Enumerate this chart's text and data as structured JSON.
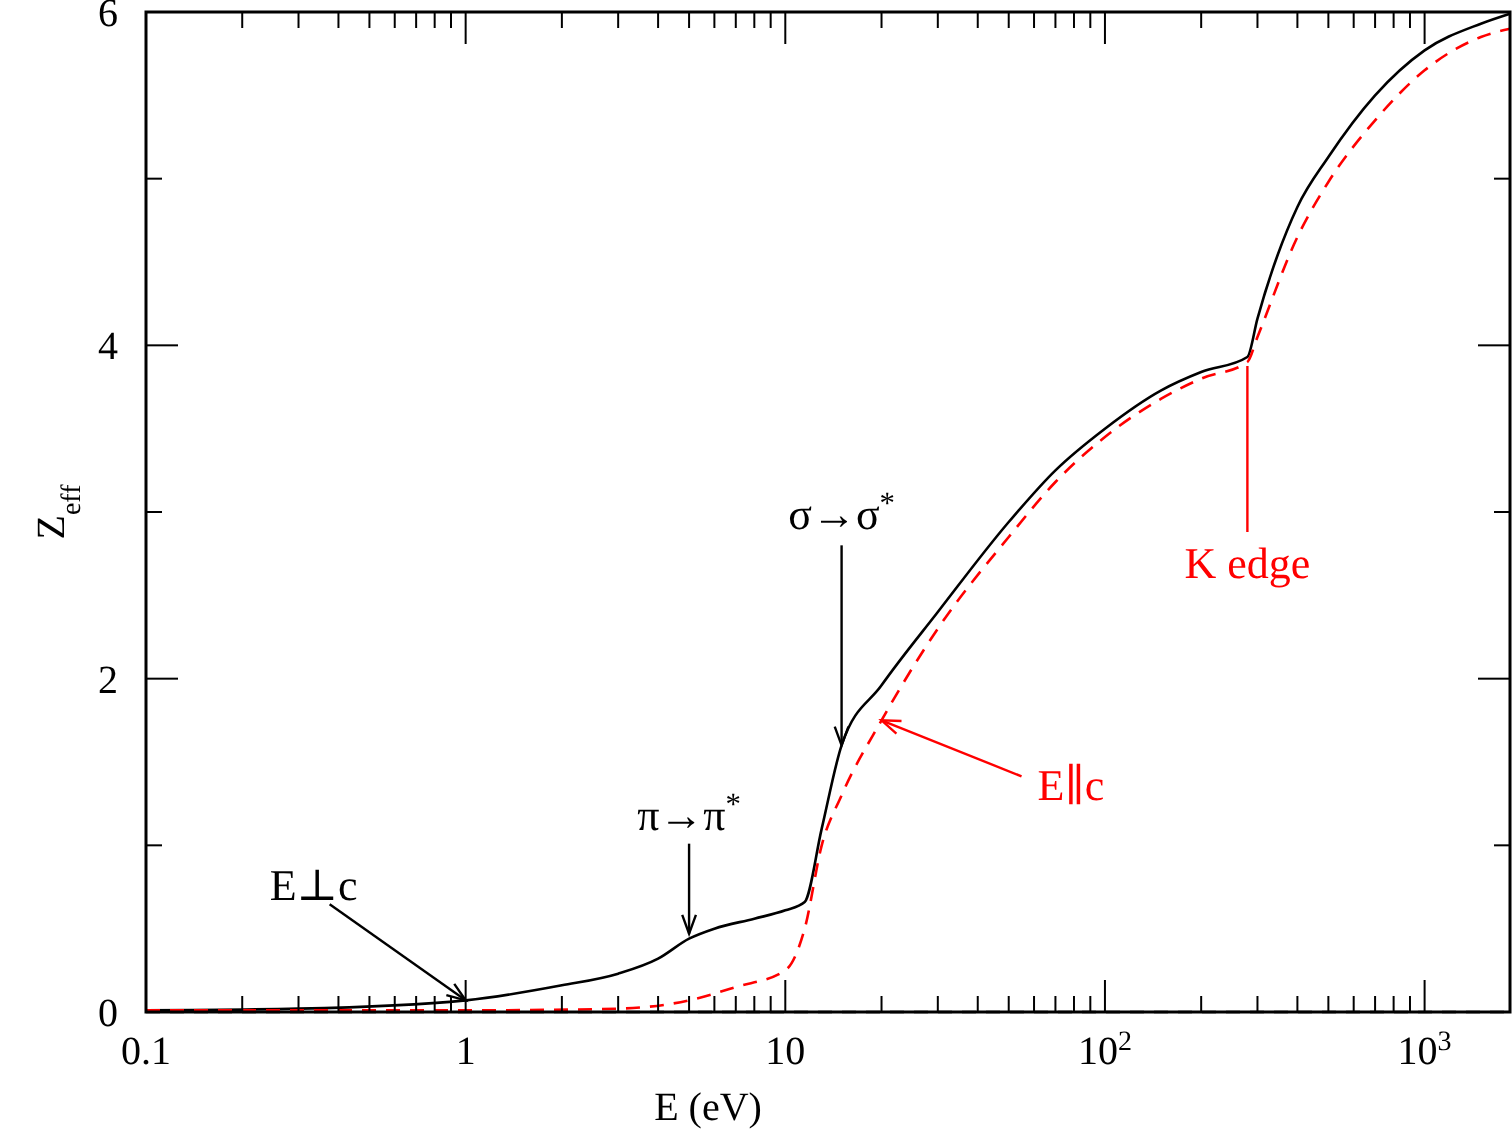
{
  "chart_data": {
    "type": "line",
    "xlabel": "E (eV)",
    "ylabel": "Z$_{eff}$",
    "log": "x",
    "grid": false,
    "xlim": [
      0.1,
      1850
    ],
    "ylim": [
      0,
      6
    ],
    "xticks": [
      0.1,
      {
        "value": 0.2,
        "label": null
      },
      {
        "value": 0.3,
        "label": null
      },
      {
        "value": 0.4,
        "label": null
      },
      {
        "value": 0.5,
        "label": null
      },
      {
        "value": 0.6,
        "label": null
      },
      {
        "value": 0.7,
        "label": null
      },
      {
        "value": 0.8,
        "label": null
      },
      {
        "value": 0.9,
        "label": null
      },
      1,
      {
        "value": 2,
        "label": null
      },
      {
        "value": 3,
        "label": null
      },
      {
        "value": 4,
        "label": null
      },
      {
        "value": 5,
        "label": null
      },
      {
        "value": 6,
        "label": null
      },
      {
        "value": 7,
        "label": null
      },
      {
        "value": 8,
        "label": null
      },
      {
        "value": 9,
        "label": null
      },
      10,
      {
        "value": 20,
        "label": null
      },
      {
        "value": 30,
        "label": null
      },
      {
        "value": 40,
        "label": null
      },
      {
        "value": 50,
        "label": null
      },
      {
        "value": 60,
        "label": null
      },
      {
        "value": 70,
        "label": null
      },
      {
        "value": 80,
        "label": null
      },
      {
        "value": 90,
        "label": null
      },
      {
        "value": 100,
        "label": "10$^{2}$"
      },
      {
        "value": 200,
        "label": null
      },
      {
        "value": 300,
        "label": null
      },
      {
        "value": 400,
        "label": null
      },
      {
        "value": 500,
        "label": null
      },
      {
        "value": 600,
        "label": null
      },
      {
        "value": 700,
        "label": null
      },
      {
        "value": 800,
        "label": null
      },
      {
        "value": 900,
        "label": null
      },
      {
        "value": 1000,
        "label": "10$^{3}$"
      }
    ],
    "yticks": [
      0,
      {
        "value": 1,
        "label": null
      },
      2,
      {
        "value": 3,
        "label": null
      },
      4,
      {
        "value": 5,
        "label": null
      },
      6
    ],
    "series": [
      {
        "name": "E⊥c",
        "color": "#000000",
        "line_style": "solid",
        "x": [
          0.1,
          0.3,
          1,
          2,
          3,
          4,
          5,
          6,
          8,
          10,
          11.5,
          13,
          15,
          20,
          30,
          50,
          70,
          100,
          150,
          200,
          279,
          300,
          400,
          500,
          700,
          1000,
          1500,
          1850
        ],
        "values": [
          0.01,
          0.02,
          0.07,
          0.16,
          0.23,
          0.32,
          0.44,
          0.5,
          0.56,
          0.61,
          0.66,
          1.1,
          1.6,
          1.96,
          2.4,
          2.94,
          3.25,
          3.5,
          3.73,
          3.84,
          3.93,
          4.16,
          4.83,
          5.13,
          5.5,
          5.77,
          5.93,
          5.99
        ]
      },
      {
        "name": "E∥c",
        "color": "#ff0000",
        "line_style": "dashed",
        "x": [
          0.1,
          1,
          3,
          5,
          7,
          10,
          11.5,
          13,
          15,
          20,
          30,
          50,
          70,
          100,
          150,
          200,
          279,
          300,
          400,
          500,
          700,
          1000,
          1500,
          1850
        ],
        "values": [
          0.01,
          0.01,
          0.02,
          0.07,
          0.15,
          0.25,
          0.5,
          1.0,
          1.3,
          1.75,
          2.3,
          2.85,
          3.18,
          3.45,
          3.68,
          3.8,
          3.9,
          4.05,
          4.65,
          4.98,
          5.35,
          5.65,
          5.85,
          5.9
        ]
      }
    ],
    "ref_lines": [
      {
        "axis": "y",
        "value": 0,
        "color": "#000000",
        "line_style": "dashed"
      }
    ],
    "annotations": [
      {
        "text": "π→π$^{*}$",
        "x": 5,
        "y": 0.47
      },
      {
        "text": "σ→σ$^{*}$",
        "x": 15,
        "y": 1.6
      },
      {
        "text": "K edge",
        "x": 279,
        "y": 3.9
      }
    ]
  }
}
